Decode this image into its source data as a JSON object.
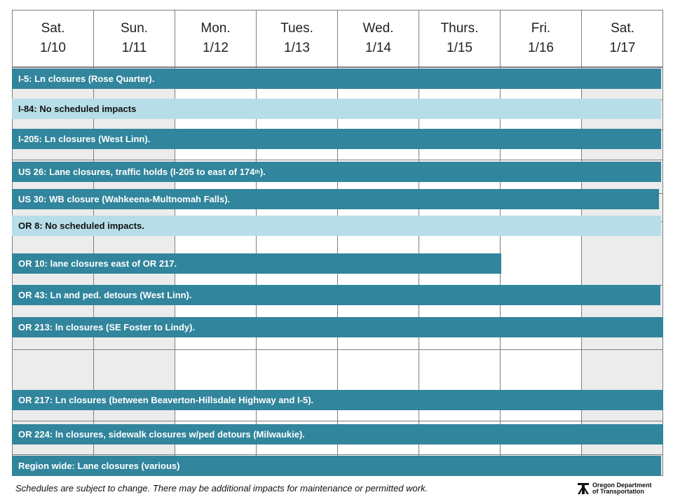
{
  "days": [
    {
      "name": "Sat.",
      "date": "1/10"
    },
    {
      "name": "Sun.",
      "date": "1/11"
    },
    {
      "name": "Mon.",
      "date": "1/12"
    },
    {
      "name": "Tues.",
      "date": "1/13"
    },
    {
      "name": "Wed.",
      "date": "1/14"
    },
    {
      "name": "Thurs.",
      "date": "1/15"
    },
    {
      "name": "Fri.",
      "date": "1/16"
    },
    {
      "name": "Sat.",
      "date": "1/17"
    }
  ],
  "rows": [
    {
      "label": "I-5: Ln closures (Rose Quarter).",
      "style": "dark"
    },
    {
      "label": "I-84: No scheduled impacts",
      "style": "light"
    },
    {
      "label": "I-205: Ln closures (West Linn).",
      "style": "dark"
    },
    {
      "label": "US 26: Lane closures, traffic holds (I-205 to east of 174",
      "label_sup": "th",
      "label_tail": ").",
      "style": "dark"
    },
    {
      "label": "US 30: WB closure (Wahkeena-Multnomah Falls).",
      "style": "dark"
    },
    {
      "label": "OR 8: No scheduled impacts.",
      "style": "light"
    },
    {
      "label": "OR 10: lane closures east of OR 217.",
      "style": "dark"
    },
    {
      "label": "OR 43: Ln and ped. detours (West Linn).",
      "style": "dark"
    },
    {
      "label": "OR 213: ln closures (SE Foster to Lindy).",
      "style": "dark"
    },
    {
      "label": "OR 217: Ln closures (between Beaverton-Hillsdale Highway and I-5).",
      "style": "dark"
    },
    {
      "label": "OR 224: ln closures, sidewalk closures w/ped detours (Milwaukie).",
      "style": "dark"
    },
    {
      "label": "Region wide: Lane closures (various)",
      "style": "dark"
    }
  ],
  "footer": "Schedules are subject to change. There may be additional impacts for maintenance or permitted work.",
  "logo": {
    "line1": "Oregon Department",
    "line2": "of Transportation"
  },
  "colors": {
    "dark": "#31859c",
    "light": "#b7dee8",
    "weekend_shade": "#ececec"
  }
}
